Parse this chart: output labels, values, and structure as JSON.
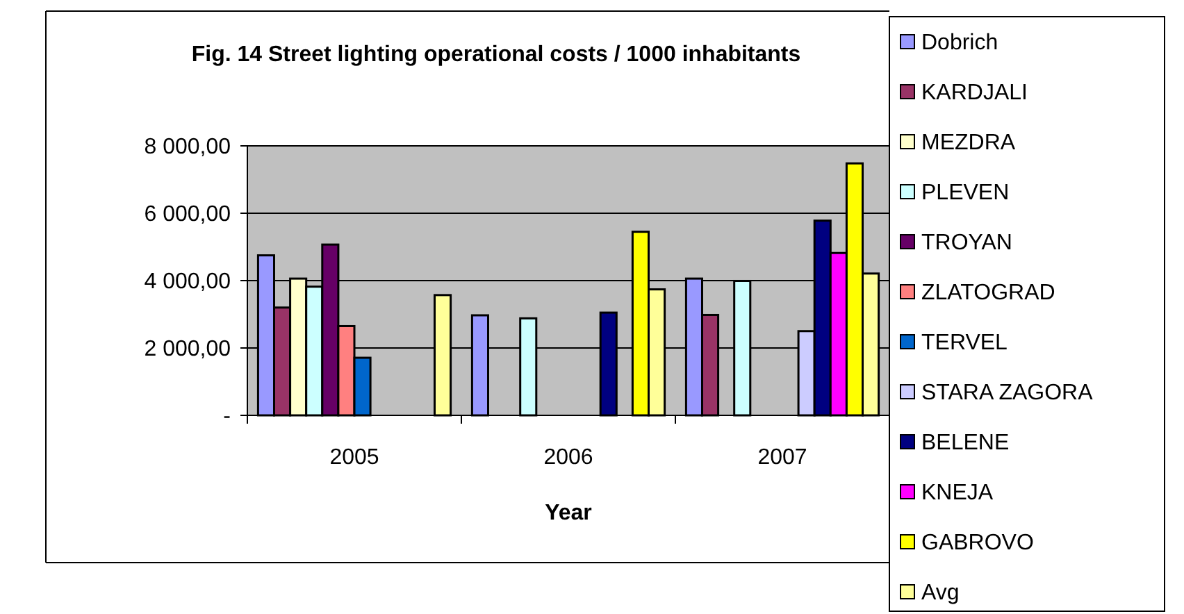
{
  "chart_data": {
    "type": "bar",
    "title": "Fig. 14 Street lighting operational costs /  1000 inhabitants",
    "xlabel": "Year",
    "categories": [
      "2005",
      "2006",
      "2007"
    ],
    "series": [
      {
        "name": "Dobrich",
        "color": "#9999ff",
        "values": [
          4750,
          2970,
          4060
        ]
      },
      {
        "name": "KARDJALI",
        "color": "#993366",
        "values": [
          3200,
          null,
          2980
        ]
      },
      {
        "name": "MEZDRA",
        "color": "#ffffcc",
        "values": [
          4060,
          null,
          null
        ]
      },
      {
        "name": "PLEVEN",
        "color": "#ccffff",
        "values": [
          3820,
          2880,
          3990
        ]
      },
      {
        "name": "TROYAN",
        "color": "#660066",
        "values": [
          5070,
          null,
          null
        ]
      },
      {
        "name": "ZLATOGRAD",
        "color": "#ff8080",
        "values": [
          2650,
          null,
          null
        ]
      },
      {
        "name": "TERVEL",
        "color": "#0066cc",
        "values": [
          1710,
          null,
          null
        ]
      },
      {
        "name": "STARA ZAGORA",
        "color": "#ccccff",
        "values": [
          null,
          null,
          2500
        ]
      },
      {
        "name": "BELENE",
        "color": "#000080",
        "values": [
          null,
          3050,
          5780
        ]
      },
      {
        "name": "KNEJA",
        "color": "#ff00ff",
        "values": [
          null,
          null,
          4820
        ]
      },
      {
        "name": "GABROVO",
        "color": "#ffff00",
        "values": [
          null,
          5450,
          7480
        ]
      },
      {
        "name": "Avg",
        "color": "#ffff99",
        "values": [
          3570,
          3740,
          4210
        ]
      }
    ],
    "ylim": [
      0,
      8000
    ],
    "yticks": [
      {
        "value": 0,
        "label": "-"
      },
      {
        "value": 2000,
        "label": "2 000,00"
      },
      {
        "value": 4000,
        "label": "4 000,00"
      },
      {
        "value": 6000,
        "label": "6 000,00"
      },
      {
        "value": 8000,
        "label": "8 000,00"
      }
    ],
    "grid": "y",
    "legend": "right"
  }
}
